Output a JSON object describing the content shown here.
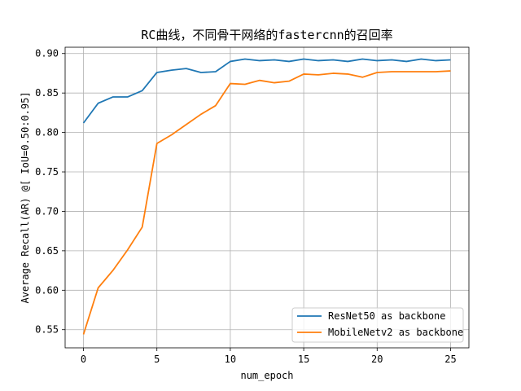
{
  "chart_data": {
    "type": "line",
    "title": "RC曲线，不同骨干网络的fastercnn的召回率",
    "xlabel": "num_epoch",
    "ylabel": "Average Recall(AR) @[ IoU=0.50:0.95]",
    "xlim": [
      -1.25,
      26.25
    ],
    "ylim": [
      0.527,
      0.908
    ],
    "xticks": [
      0,
      5,
      10,
      15,
      20,
      25
    ],
    "yticks": [
      0.55,
      0.6,
      0.65,
      0.7,
      0.75,
      0.8,
      0.85,
      0.9
    ],
    "ytick_labels": [
      "0.55",
      "0.60",
      "0.65",
      "0.70",
      "0.75",
      "0.80",
      "0.85",
      "0.90"
    ],
    "grid": true,
    "legend_position": "lower-right",
    "x": [
      0,
      1,
      2,
      3,
      4,
      5,
      6,
      7,
      8,
      9,
      10,
      11,
      12,
      13,
      14,
      15,
      16,
      17,
      18,
      19,
      20,
      21,
      22,
      23,
      24,
      25
    ],
    "series": [
      {
        "name": "ResNet50 as backbone",
        "color": "#1f77b4",
        "values": [
          0.812,
          0.837,
          0.845,
          0.845,
          0.853,
          0.876,
          0.879,
          0.881,
          0.876,
          0.877,
          0.89,
          0.893,
          0.891,
          0.892,
          0.89,
          0.893,
          0.891,
          0.892,
          0.89,
          0.893,
          0.891,
          0.892,
          0.89,
          0.893,
          0.891,
          0.892
        ]
      },
      {
        "name": "MobileNetv2 as backbone",
        "color": "#ff7f0e",
        "values": [
          0.544,
          0.603,
          0.625,
          0.651,
          0.68,
          0.786,
          0.797,
          0.81,
          0.823,
          0.834,
          0.862,
          0.861,
          0.866,
          0.863,
          0.865,
          0.874,
          0.873,
          0.875,
          0.874,
          0.87,
          0.876,
          0.877,
          0.877,
          0.877,
          0.877,
          0.878
        ]
      }
    ]
  }
}
